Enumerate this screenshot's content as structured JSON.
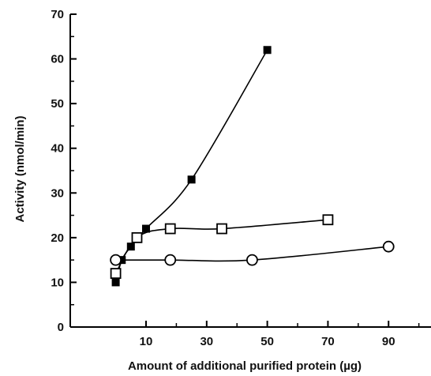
{
  "chart_data": {
    "type": "scatter",
    "xlabel": "Amount of additional purified protein  (µg)",
    "ylabel": "Activity (nmol/min)",
    "xlim": [
      -15,
      104
    ],
    "ylim": [
      0,
      70
    ],
    "x_ticks": [
      10,
      30,
      50,
      70,
      90
    ],
    "y_ticks": [
      0,
      10,
      20,
      30,
      40,
      50,
      60,
      70
    ],
    "grid": false,
    "series": [
      {
        "marker": "filled-square",
        "color": "#000000",
        "x": [
          0,
          2,
          5,
          10,
          25,
          50
        ],
        "y": [
          10,
          15,
          18,
          22,
          33,
          62
        ]
      },
      {
        "marker": "open-square",
        "color": "#000000",
        "x": [
          0,
          7,
          18,
          35,
          70
        ],
        "y": [
          12,
          20,
          22,
          22,
          24
        ]
      },
      {
        "marker": "open-circle",
        "color": "#000000",
        "x": [
          0,
          18,
          45,
          90
        ],
        "y": [
          15,
          15,
          15,
          18
        ]
      }
    ]
  }
}
